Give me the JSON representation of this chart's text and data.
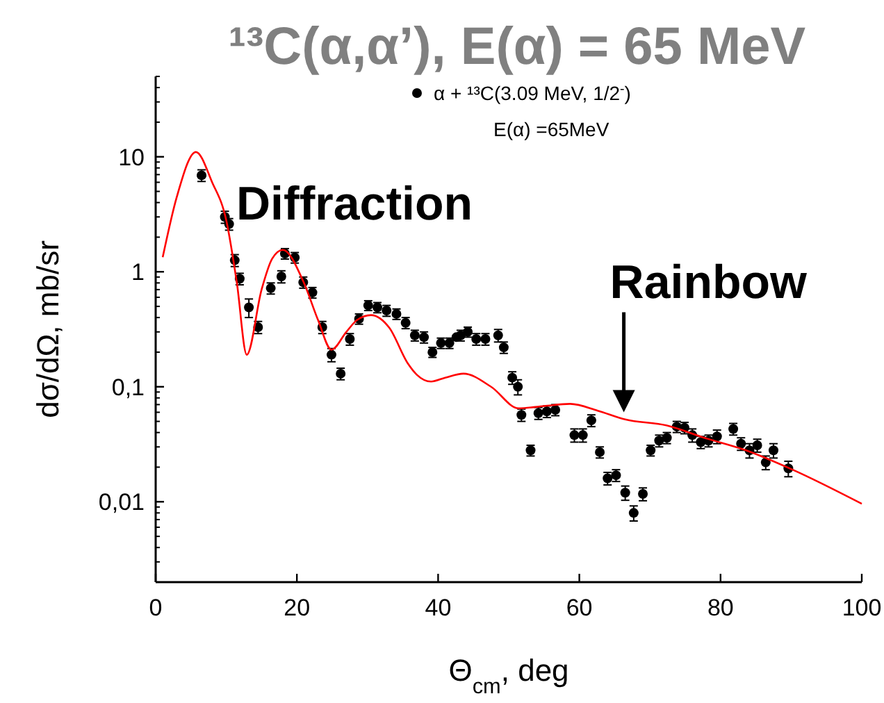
{
  "chart_data": {
    "type": "scatter",
    "title": "¹³C(α,α’), E(α) = 65 MeV",
    "xlabel": "Θ$_{cm}$, deg",
    "ylabel": "dσ/dΩ, mb/sr",
    "annotations": [
      "E(α) =65MeV",
      "Diffraction",
      {
        "text": "Rainbow",
        "x": 66.3,
        "y": 0.06
      }
    ],
    "xlim": [
      0,
      100
    ],
    "xticks": [
      0,
      20,
      40,
      60,
      80,
      100
    ],
    "ylim": [
      0.002,
      50
    ],
    "log": true,
    "yticks": [
      {
        "value": 0.01,
        "label": "0,01"
      },
      {
        "value": 0.1,
        "label": "0,1"
      },
      1,
      10
    ],
    "grid": false,
    "legend": "top",
    "marker": "circle",
    "series": [
      {
        "name": "α + ¹³C(3.09 MeV, 1/2$^{-}$)",
        "color": "#000000",
        "x": [
          6.5,
          9.8,
          10.4,
          11.2,
          11.9,
          13.2,
          14.5,
          16.3,
          17.8,
          18.3,
          19.7,
          20.9,
          22.2,
          23.6,
          24.9,
          26.2,
          27.5,
          28.8,
          30.1,
          31.4,
          32.7,
          34.1,
          35.4,
          36.7,
          38.0,
          39.2,
          40.4,
          41.6,
          42.6,
          43.2,
          44.2,
          45.4,
          46.7,
          48.5,
          49.3,
          50.5,
          51.3,
          51.8,
          53.1,
          54.2,
          55.4,
          56.6,
          59.3,
          60.5,
          61.7,
          62.9,
          64.0,
          65.2,
          66.5,
          67.7,
          69.0,
          70.1,
          71.3,
          72.4,
          73.8,
          74.9,
          76.0,
          77.2,
          78.3,
          79.5,
          81.8,
          82.9,
          84.1,
          85.2,
          86.4,
          87.5,
          89.6
        ],
        "values": [
          6.9,
          3.0,
          2.6,
          1.26,
          0.87,
          0.49,
          0.33,
          0.72,
          0.91,
          1.44,
          1.33,
          0.81,
          0.66,
          0.33,
          0.19,
          0.13,
          0.26,
          0.39,
          0.51,
          0.49,
          0.46,
          0.43,
          0.36,
          0.28,
          0.27,
          0.2,
          0.24,
          0.24,
          0.27,
          0.28,
          0.3,
          0.26,
          0.26,
          0.28,
          0.22,
          0.12,
          0.1,
          0.057,
          0.028,
          0.059,
          0.061,
          0.063,
          0.038,
          0.038,
          0.051,
          0.027,
          0.016,
          0.017,
          0.012,
          0.008,
          0.0117,
          0.028,
          0.034,
          0.036,
          0.045,
          0.044,
          0.038,
          0.033,
          0.034,
          0.037,
          0.043,
          0.032,
          0.028,
          0.031,
          0.022,
          0.028,
          0.0195
        ],
        "errors": [
          0.8,
          0.36,
          0.3,
          0.15,
          0.1,
          0.09,
          0.04,
          0.08,
          0.11,
          0.15,
          0.14,
          0.09,
          0.07,
          0.04,
          0.025,
          0.015,
          0.03,
          0.04,
          0.05,
          0.05,
          0.05,
          0.045,
          0.04,
          0.03,
          0.03,
          0.02,
          0.025,
          0.025,
          0.01,
          0.03,
          0.03,
          0.03,
          0.03,
          0.035,
          0.025,
          0.015,
          0.015,
          0.007,
          0.003,
          0.007,
          0.007,
          0.007,
          0.005,
          0.005,
          0.006,
          0.003,
          0.002,
          0.002,
          0.0017,
          0.0012,
          0.0015,
          0.003,
          0.004,
          0.004,
          0.005,
          0.005,
          0.005,
          0.004,
          0.004,
          0.005,
          0.005,
          0.004,
          0.004,
          0.004,
          0.003,
          0.004,
          0.003
        ]
      },
      {
        "type": "line",
        "color": "#ff0000",
        "line_style": "solid",
        "marker": "none",
        "x": [
          1,
          3,
          5.7,
          8,
          10,
          11.5,
          12.9,
          15,
          16.5,
          18,
          21,
          23,
          24.9,
          27,
          28.5,
          30.5,
          33.1,
          35.7,
          37,
          39,
          41,
          43.6,
          47.5,
          51.4,
          55,
          58.7,
          62.6,
          66.5,
          72.4,
          77.7,
          83.6,
          90.2,
          100
        ],
        "values": [
          1.34,
          4.5,
          11,
          6,
          2.8,
          0.8,
          0.19,
          0.7,
          1.3,
          1.55,
          0.8,
          0.38,
          0.21,
          0.3,
          0.38,
          0.42,
          0.325,
          0.16,
          0.127,
          0.111,
          0.12,
          0.13,
          0.1,
          0.065,
          0.068,
          0.071,
          0.062,
          0.052,
          0.046,
          0.036,
          0.028,
          0.019,
          0.0096
        ]
      }
    ]
  }
}
